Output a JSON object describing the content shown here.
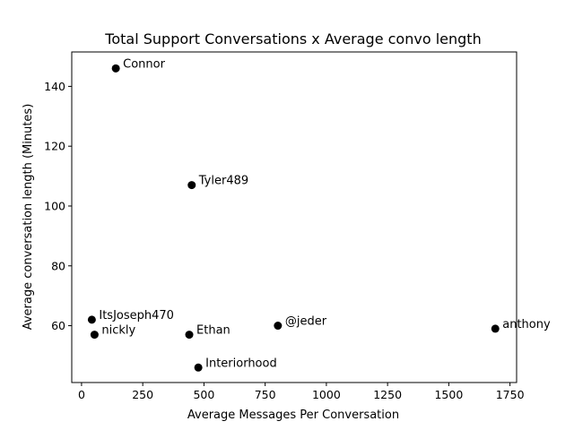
{
  "chart_data": {
    "type": "scatter",
    "title": "Total Support Conversations x Average convo length",
    "xlabel": "Average Messages Per Conversation",
    "ylabel": "Average conversation length (Minutes)",
    "xlim": [
      -40,
      1777
    ],
    "ylim": [
      41,
      151.5
    ],
    "xticks": [
      0,
      250,
      500,
      750,
      1000,
      1250,
      1500,
      1750
    ],
    "yticks": [
      60,
      80,
      100,
      120,
      140
    ],
    "grid": false,
    "marker_color": "#000000",
    "points": [
      {
        "label": "Connor",
        "x": 140,
        "y": 146
      },
      {
        "label": "Tyler489",
        "x": 450,
        "y": 107
      },
      {
        "label": "ItsJoseph470",
        "x": 42,
        "y": 62
      },
      {
        "label": "nickly",
        "x": 53,
        "y": 57
      },
      {
        "label": "Ethan",
        "x": 440,
        "y": 57
      },
      {
        "label": "Interiorhood",
        "x": 477,
        "y": 46
      },
      {
        "label": "@jeder",
        "x": 802,
        "y": 60
      },
      {
        "label": "anthony",
        "x": 1690,
        "y": 59
      }
    ]
  }
}
